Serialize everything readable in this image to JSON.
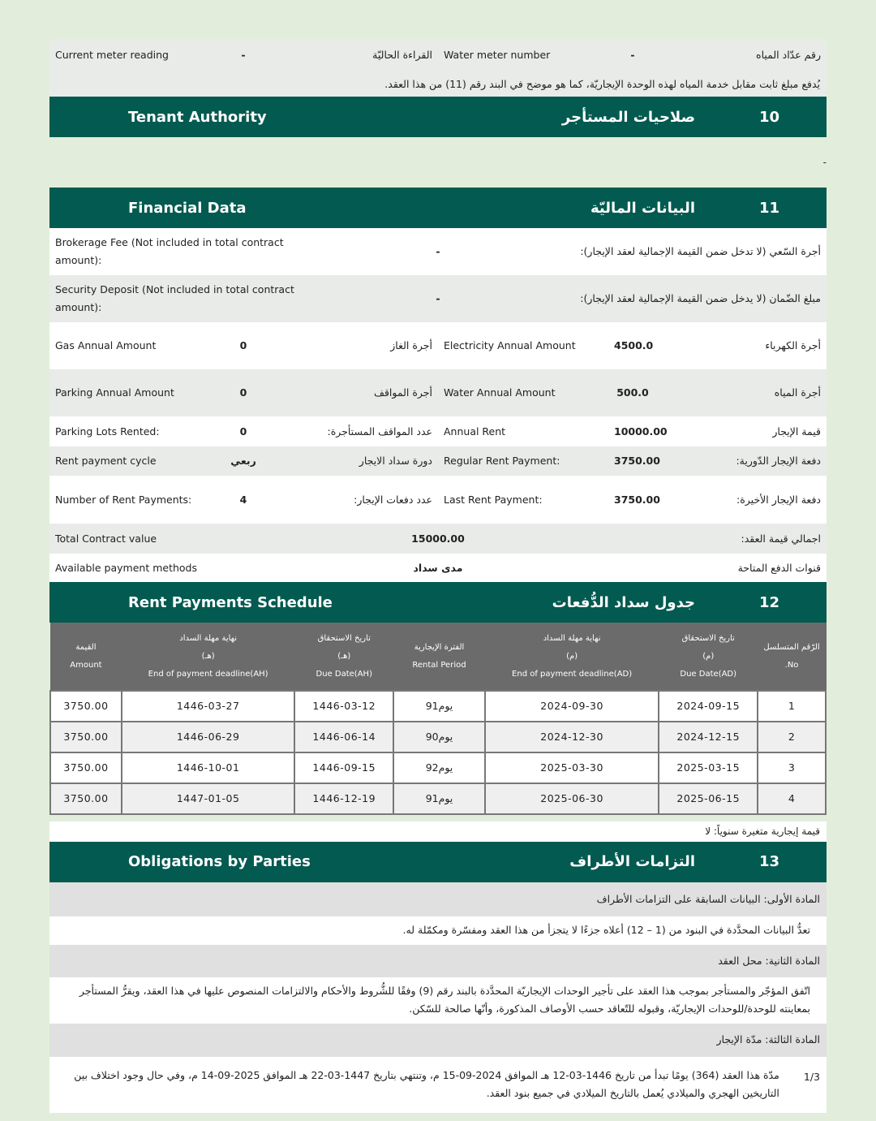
{
  "meter": {
    "current_en": "Current meter reading",
    "current_val": "-",
    "current_ar": "القراءة الحاليّة",
    "number_en": "Water meter number",
    "number_val": "-",
    "number_ar": "رقم عدّاد المياه"
  },
  "water_note": "يُدفع مبلغ ثابت مقابل خدمة المياه لهذه الوحدة الإيجاريّة، كما هو موضح في البند رقم (11) من هذا العقد.",
  "sections": {
    "tenant": {
      "en": "Tenant Authority",
      "ar": "صلاحيات المستأجر",
      "num": "10",
      "body": "-"
    },
    "financial": {
      "en": "Financial Data",
      "ar": "البيانات الماليّة",
      "num": "11"
    },
    "schedule": {
      "en": "Rent Payments Schedule",
      "ar": "جدول سداد الدُّفعات",
      "num": "12"
    },
    "obligations": {
      "en": "Obligations by Parties",
      "ar": "التزامات الأطراف",
      "num": "13"
    }
  },
  "financial": {
    "brokerage": {
      "en": "Brokerage Fee (Not included in total contract amount):",
      "val": "-",
      "ar": "أجرة السّعي (لا تدخل ضمن القيمة الإجمالية لعقد الإيجار):"
    },
    "security": {
      "en": "Security Deposit (Not included in total contract amount):",
      "val": "-",
      "ar": "مبلغ الضّمان (لا يدخل ضمن القيمة الإجمالية لعقد الإيجار):"
    },
    "pairs": [
      [
        {
          "en": "Gas Annual Amount",
          "val": "0",
          "ar": "أجرة الغاز"
        },
        {
          "en": "Electricity Annual Amount",
          "val": "4500.0",
          "ar": "أجرة الكهرباء"
        }
      ],
      [
        {
          "en": "Parking Annual Amount",
          "val": "0",
          "ar": "أجرة المواقف"
        },
        {
          "en": "Water Annual Amount",
          "val": "500.0",
          "ar": "أجرة المياه"
        }
      ],
      [
        {
          "en": "Parking Lots Rented:",
          "val": "0",
          "ar": "عدد المواقف المستأجرة:"
        },
        {
          "en": "Annual Rent",
          "val": "10000.00",
          "ar": "قيمة الإيجار"
        }
      ],
      [
        {
          "en": "Rent payment cycle",
          "val": "ربعي",
          "ar": "دورة سداد الايجار"
        },
        {
          "en": "Regular Rent Payment:",
          "val": "3750.00",
          "ar": "دفعة الإيجار الدّورية:"
        }
      ],
      [
        {
          "en": "Number of Rent Payments:",
          "val": "4",
          "ar": "عدد دفعات الإيجار:"
        },
        {
          "en": "Last Rent Payment:",
          "val": "3750.00",
          "ar": "دفعة الإيجار الأخيرة:"
        }
      ]
    ],
    "total": {
      "en": "Total Contract value",
      "val": "15000.00",
      "ar": "اجمالي قيمة العقد:"
    },
    "methods": {
      "en": "Available payment methods",
      "val": "مدى سداد",
      "ar": "قنوات الدفع المتاحة"
    }
  },
  "schedule": {
    "headers": [
      {
        "ar": "القيمة",
        "en": "Amount"
      },
      {
        "ar": "نهاية مهلة السداد",
        "sub": "(هـ)",
        "en": "End of payment deadline(AH)"
      },
      {
        "ar": "تاريخ الاستحقاق",
        "sub": "(هـ)",
        "en": "Due Date(AH)"
      },
      {
        "ar": "الفترة الإيجارية",
        "en": "Rental Period"
      },
      {
        "ar": "نهاية مهلة السداد",
        "sub": "(م)",
        "en": "End of payment deadline(AD)"
      },
      {
        "ar": "تاريخ الاستحقاق",
        "sub": "(م)",
        "en": "Due Date(AD)"
      },
      {
        "ar": "الرّقم المتسلسل",
        "en": ".No"
      }
    ],
    "rows": [
      [
        "3750.00",
        "1446-03-27",
        "1446-03-12",
        "91يوم",
        "2024-09-30",
        "2024-09-15",
        "1"
      ],
      [
        "3750.00",
        "1446-06-29",
        "1446-06-14",
        "90يوم",
        "2024-12-30",
        "2024-12-15",
        "2"
      ],
      [
        "3750.00",
        "1446-10-01",
        "1446-09-15",
        "92يوم",
        "2025-03-30",
        "2025-03-15",
        "3"
      ],
      [
        "3750.00",
        "1447-01-05",
        "1446-12-19",
        "91يوم",
        "2025-06-30",
        "2025-06-15",
        "4"
      ]
    ],
    "variable_note": "قيمة إيجارية متغيرة سنوياً: لا"
  },
  "obligations": [
    {
      "type": "title",
      "text": "المادة الأولى: البيانات السابقة على التزامات الأطراف"
    },
    {
      "type": "body",
      "text": "تعدُّ البيانات المحدَّدة في البنود من (1 – 12) أعلاه جزءًا لا يتجزأ من هذا العقد ومفسّرة ومكمّلة له."
    },
    {
      "type": "title",
      "text": "المادة الثانية: محل العقد"
    },
    {
      "type": "body",
      "text": "اتّفق المؤجّر والمستأجر بموجب هذا العقد على تأجير الوحدات الإيجاريّة المحدَّدة بالبند رقم (9) وفقًا للشُّروط والأحكام والالتزامات المنصوص عليها في هذا العقد، ويقرُّ المستأجر بمعاينته للوحدة/للوحدات الإيجاريّة، وقبوله للتّعاقد حسب الأوصاف المذكورة، وأنّها صالحة للسّكن."
    },
    {
      "type": "title",
      "text": "المادة الثالثة: مدّة الإيجار"
    },
    {
      "type": "body",
      "num": "1/3",
      "text": "مدّة هذا العقد (364) يومًا تبدأ من تاريخ 1446-03-12 هـ الموافق 2024-09-15 م، وتنتهي بتاريخ 1447-03-22 هـ الموافق 2025-09-14 م، وفي حال وجود اختلاف بين التاريخين الهجري والميلادي يُعمل بالتاريخ الميلادي في جميع بنود العقد."
    }
  ],
  "colors": {
    "band": "#035a50",
    "table_header": "#6b6b6b",
    "page_bg": "#e2eedb"
  }
}
